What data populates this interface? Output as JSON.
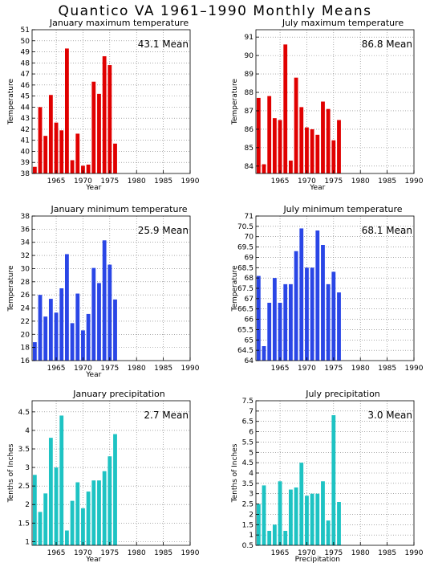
{
  "title": "Quantico VA  1961–1990 Monthly Means",
  "chart_data": [
    {
      "type": "bar",
      "title": "January maximum temperature",
      "ylabel": "Temperature",
      "xlabel": "Year",
      "mean_label": "43.1 Mean",
      "color": "#e00000",
      "ylim": [
        38,
        51
      ],
      "yticks": [
        38,
        39,
        40,
        41,
        42,
        43,
        44,
        45,
        46,
        47,
        48,
        49,
        50,
        51
      ],
      "xlim": [
        1960.5,
        1990
      ],
      "xticks": [
        1965,
        1970,
        1975,
        1980,
        1985,
        1990
      ],
      "x": [
        1961,
        1962,
        1963,
        1964,
        1965,
        1966,
        1967,
        1968,
        1969,
        1970,
        1971,
        1972,
        1973,
        1974,
        1975,
        1976
      ],
      "values": [
        38.6,
        44.0,
        41.4,
        45.1,
        42.6,
        41.9,
        49.3,
        39.2,
        41.6,
        38.7,
        38.8,
        46.3,
        45.2,
        48.6,
        47.8,
        40.7
      ]
    },
    {
      "type": "bar",
      "title": "July maximum temperature",
      "ylabel": "Temperature",
      "xlabel": "Year",
      "mean_label": "86.8 Mean",
      "color": "#e00000",
      "ylim": [
        83.6,
        91.4
      ],
      "yticks": [
        84,
        85,
        86,
        87,
        88,
        89,
        90,
        91
      ],
      "xlim": [
        1960.5,
        1990
      ],
      "xticks": [
        1965,
        1970,
        1975,
        1980,
        1985,
        1990
      ],
      "x": [
        1961,
        1962,
        1963,
        1964,
        1965,
        1966,
        1967,
        1968,
        1969,
        1970,
        1971,
        1972,
        1973,
        1974,
        1975,
        1976
      ],
      "values": [
        87.7,
        84.1,
        87.8,
        86.6,
        86.5,
        90.6,
        84.3,
        88.8,
        87.2,
        86.1,
        86.0,
        85.7,
        87.5,
        87.1,
        85.4,
        86.5
      ]
    },
    {
      "type": "bar",
      "title": "January minimum temperature",
      "ylabel": "Temperature",
      "xlabel": "Year",
      "mean_label": "25.9 Mean",
      "color": "#2a46e6",
      "ylim": [
        16,
        38
      ],
      "yticks": [
        16,
        18,
        20,
        22,
        24,
        26,
        28,
        30,
        32,
        34,
        36,
        38
      ],
      "xlim": [
        1960.5,
        1990
      ],
      "xticks": [
        1965,
        1970,
        1975,
        1980,
        1985,
        1990
      ],
      "x": [
        1961,
        1962,
        1963,
        1964,
        1965,
        1966,
        1967,
        1968,
        1969,
        1970,
        1971,
        1972,
        1973,
        1974,
        1975,
        1976
      ],
      "values": [
        18.8,
        26.0,
        22.7,
        25.4,
        23.3,
        27.0,
        32.2,
        21.7,
        26.2,
        20.6,
        23.1,
        30.1,
        27.8,
        34.3,
        30.6,
        25.3
      ]
    },
    {
      "type": "bar",
      "title": "July minimum temperature",
      "ylabel": "Temperature",
      "xlabel": "",
      "mean_label": "68.1 Mean",
      "color": "#2a46e6",
      "ylim": [
        64,
        71
      ],
      "yticks": [
        64,
        64.5,
        65,
        65.5,
        66,
        66.5,
        67,
        67.5,
        68,
        68.5,
        69,
        69.5,
        70,
        70.5,
        71
      ],
      "xlim": [
        1960.5,
        1990
      ],
      "xticks": [
        1965,
        1970,
        1975,
        1980,
        1985,
        1990
      ],
      "x": [
        1961,
        1962,
        1963,
        1964,
        1965,
        1966,
        1967,
        1968,
        1969,
        1970,
        1971,
        1972,
        1973,
        1974,
        1975,
        1976
      ],
      "values": [
        68.1,
        64.7,
        66.8,
        68.0,
        66.8,
        67.7,
        67.7,
        69.3,
        70.4,
        68.5,
        68.5,
        70.3,
        69.6,
        67.7,
        68.3,
        67.3
      ]
    },
    {
      "type": "bar",
      "title": "January precipitation",
      "ylabel": "Tenths of Inches",
      "xlabel": "Year",
      "mean_label": "2.7 Mean",
      "color": "#1ec3c3",
      "ylim": [
        0.9,
        4.8
      ],
      "yticks": [
        1,
        1.5,
        2,
        2.5,
        3,
        3.5,
        4,
        4.5
      ],
      "xlim": [
        1960.5,
        1990
      ],
      "xticks": [
        1965,
        1970,
        1975,
        1980,
        1985,
        1990
      ],
      "x": [
        1961,
        1962,
        1963,
        1964,
        1965,
        1966,
        1967,
        1968,
        1969,
        1970,
        1971,
        1972,
        1973,
        1974,
        1975,
        1976
      ],
      "values": [
        2.8,
        1.8,
        2.3,
        3.8,
        3.0,
        4.4,
        1.3,
        2.1,
        2.6,
        1.9,
        2.35,
        2.65,
        2.65,
        2.9,
        3.3,
        3.9
      ]
    },
    {
      "type": "bar",
      "title": "July precipitation",
      "ylabel": "Tenths of Inches",
      "xlabel": "Precipitation",
      "mean_label": "3.0 Mean",
      "color": "#1ec3c3",
      "ylim": [
        0.5,
        7.5
      ],
      "yticks": [
        0.5,
        1,
        1.5,
        2,
        2.5,
        3,
        3.5,
        4,
        4.5,
        5,
        5.5,
        6,
        6.5,
        7,
        7.5
      ],
      "xlim": [
        1960.5,
        1990
      ],
      "xticks": [
        1965,
        1970,
        1975,
        1980,
        1985,
        1990
      ],
      "x": [
        1961,
        1962,
        1963,
        1964,
        1965,
        1966,
        1967,
        1968,
        1969,
        1970,
        1971,
        1972,
        1973,
        1974,
        1975,
        1976
      ],
      "values": [
        2.5,
        3.4,
        1.2,
        1.5,
        3.6,
        1.2,
        3.2,
        3.3,
        4.5,
        2.9,
        3.0,
        3.0,
        3.6,
        1.7,
        6.8,
        2.6
      ]
    }
  ]
}
